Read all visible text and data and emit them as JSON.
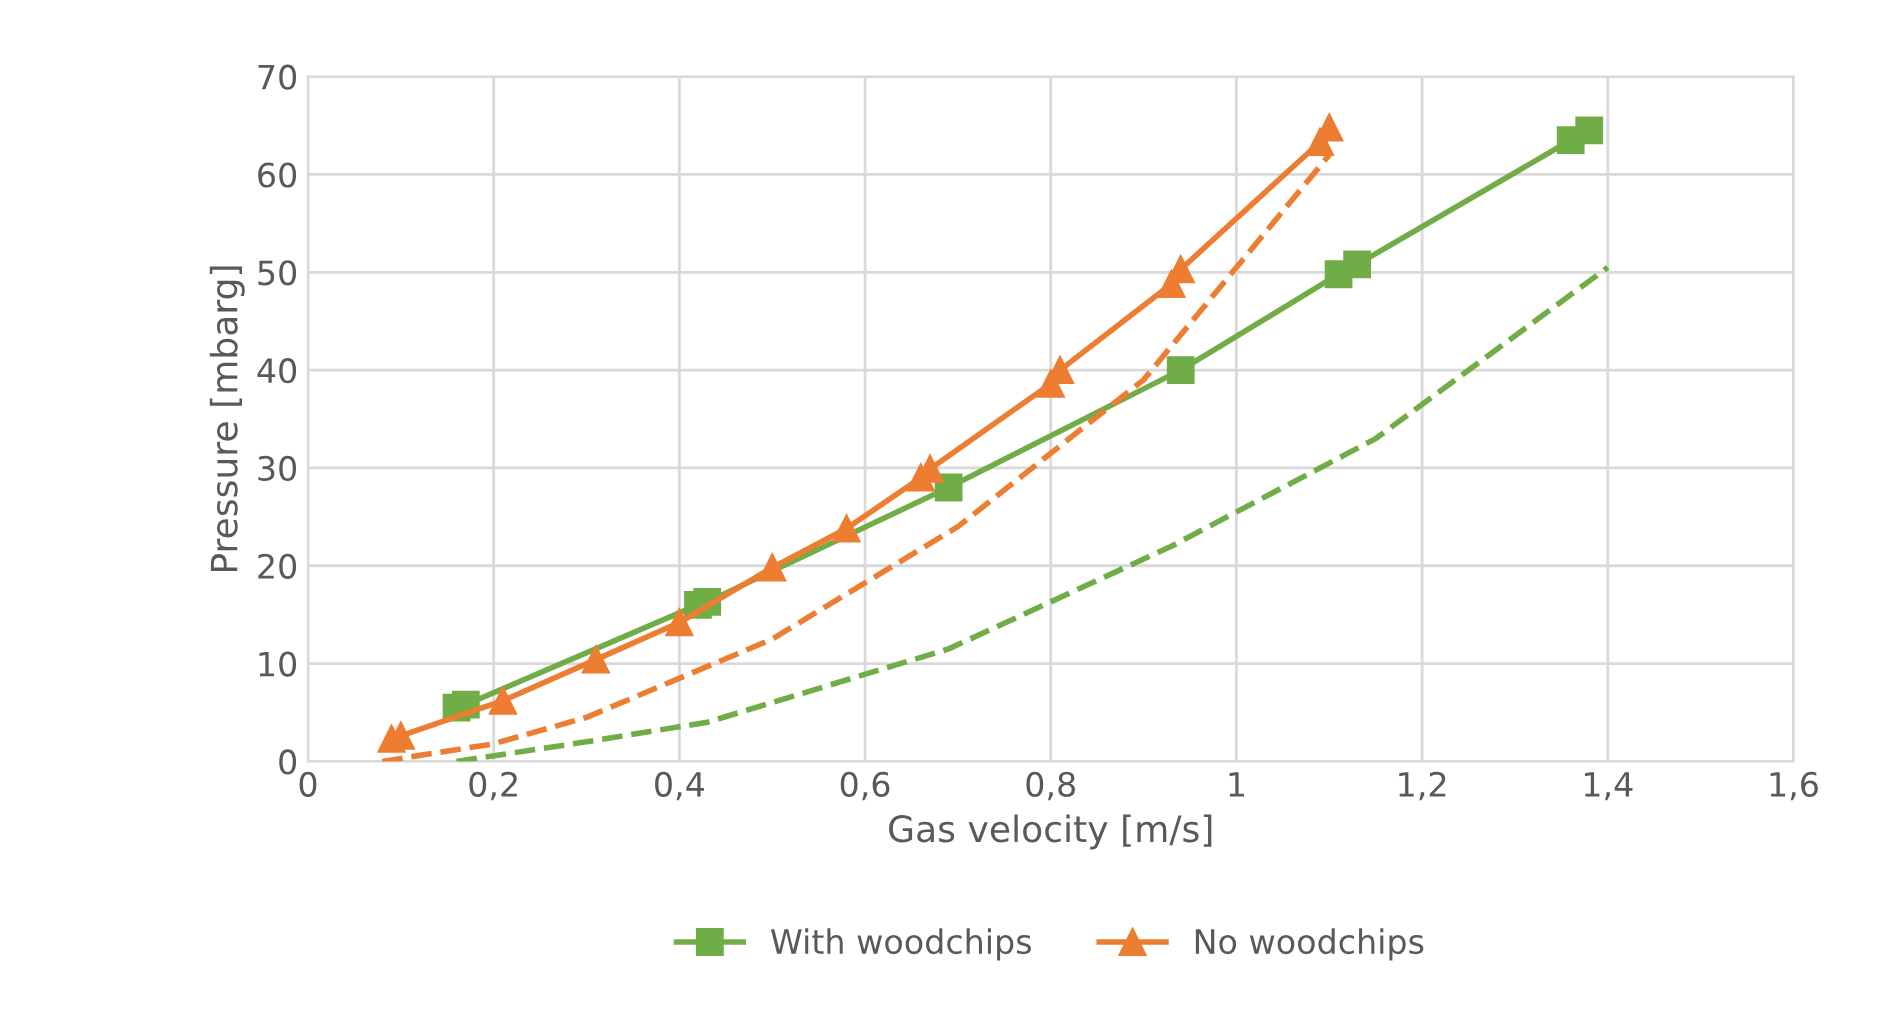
{
  "chart_data": {
    "type": "line",
    "xlabel": "Gas velocity [m/s]",
    "ylabel": "Pressure [mbarg]",
    "xlim": [
      0,
      1.6
    ],
    "ylim": [
      0,
      70
    ],
    "xticks": [
      0,
      {
        "value": 0.2,
        "label": "0,2"
      },
      {
        "value": 0.4,
        "label": "0,4"
      },
      {
        "value": 0.6,
        "label": "0,6"
      },
      {
        "value": 0.8,
        "label": "0,8"
      },
      1,
      {
        "value": 1.2,
        "label": "1,2"
      },
      {
        "value": 1.4,
        "label": "1,4"
      },
      {
        "value": 1.6,
        "label": "1,6"
      }
    ],
    "yticks": [
      0,
      10,
      20,
      30,
      40,
      50,
      60,
      70
    ],
    "grid": true,
    "legend": "bottom",
    "series": [
      {
        "name": "With woodchips",
        "color": "#70ad47",
        "marker": "square",
        "line_style": "solid",
        "x": [
          0.16,
          0.17,
          0.42,
          0.43,
          0.69,
          0.94,
          1.11,
          1.13,
          1.36,
          1.38
        ],
        "values": [
          5.5,
          5.8,
          16,
          16.3,
          28,
          40,
          49.8,
          50.8,
          63.5,
          64.5
        ]
      },
      {
        "name": "No woodchips",
        "color": "#ed7d31",
        "marker": "triangle",
        "line_style": "solid",
        "x": [
          0.09,
          0.1,
          0.21,
          0.31,
          0.4,
          0.5,
          0.58,
          0.66,
          0.67,
          0.8,
          0.81,
          0.93,
          0.94,
          1.09,
          1.1
        ],
        "values": [
          2.3,
          2.6,
          6.2,
          10.4,
          14.2,
          19.8,
          23.8,
          29,
          29.9,
          38.6,
          40,
          48.8,
          50.3,
          63.3,
          64.8
        ]
      },
      {
        "color": "#70ad47",
        "marker": "none",
        "line_style": "dashed",
        "x": [
          0.16,
          0.3,
          0.43,
          0.69,
          0.93,
          1.15,
          1.4
        ],
        "values": [
          0,
          2,
          4,
          11.5,
          22,
          33,
          50.5
        ]
      },
      {
        "color": "#ed7d31",
        "marker": "none",
        "line_style": "dashed",
        "x": [
          0.08,
          0.2,
          0.3,
          0.5,
          0.7,
          0.9,
          1.1
        ],
        "values": [
          0,
          1.8,
          4.5,
          12.5,
          24,
          39,
          62
        ]
      }
    ]
  }
}
